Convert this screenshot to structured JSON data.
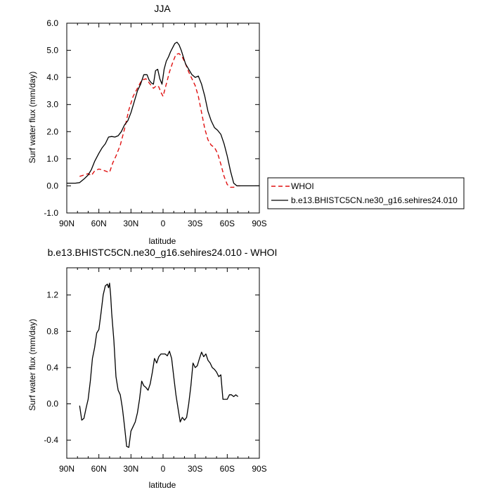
{
  "chart_data": [
    {
      "type": "line",
      "title": "JJA",
      "xlabel": "latitude",
      "ylabel": "Surf water flux (mm/day)",
      "xlim": [
        90,
        -90
      ],
      "ylim": [
        -1.0,
        6.0
      ],
      "x_ticks": [
        90,
        60,
        30,
        0,
        -30,
        -60,
        -90
      ],
      "x_tick_labels": [
        "90N",
        "60N",
        "30N",
        "0",
        "30S",
        "60S",
        "90S"
      ],
      "y_ticks": [
        -1.0,
        0.0,
        1.0,
        2.0,
        3.0,
        4.0,
        5.0,
        6.0
      ],
      "y_tick_labels": [
        "-1.0",
        "0.0",
        "1.0",
        "2.0",
        "3.0",
        "4.0",
        "5.0",
        "6.0"
      ],
      "legend": "right-outside",
      "series": [
        {
          "name": "WHOI",
          "color": "#e01010",
          "dash": "dashed",
          "x": [
            78,
            74,
            70,
            67,
            64,
            60,
            56,
            52,
            50,
            47,
            44,
            40,
            36,
            32,
            28,
            24,
            20,
            16,
            12,
            9,
            6,
            4,
            2,
            0,
            -2,
            -4,
            -6,
            -9,
            -12,
            -15,
            -18,
            -21,
            -24,
            -27,
            -30,
            -33,
            -36,
            -39,
            -42,
            -45,
            -48,
            -51,
            -54,
            -57,
            -60,
            -63,
            -66,
            -69,
            -72
          ],
          "y": [
            0.35,
            0.4,
            0.45,
            0.38,
            0.55,
            0.62,
            0.58,
            0.52,
            0.5,
            0.85,
            1.1,
            1.5,
            2.1,
            2.8,
            3.3,
            3.6,
            3.9,
            3.95,
            3.75,
            3.6,
            3.7,
            3.65,
            3.45,
            3.3,
            3.6,
            3.9,
            4.2,
            4.55,
            4.85,
            4.88,
            4.75,
            4.5,
            4.2,
            3.95,
            3.7,
            3.3,
            2.7,
            2.1,
            1.7,
            1.5,
            1.42,
            1.2,
            0.8,
            0.35,
            0.05,
            -0.05,
            -0.05,
            0.0,
            0.0
          ]
        },
        {
          "name": "b.e13.BHISTC5CN.ne30_g16.sehires24.010",
          "color": "#000000",
          "dash": "solid",
          "x": [
            90,
            86,
            82,
            78,
            74,
            70,
            67,
            64,
            60,
            57,
            54,
            51,
            48,
            45,
            42,
            39,
            36,
            33,
            30,
            27,
            24,
            21,
            18,
            15,
            13,
            11,
            9,
            7,
            5,
            3,
            1,
            -1,
            -3,
            -5,
            -7,
            -9,
            -11,
            -13,
            -15,
            -17,
            -19,
            -21,
            -24,
            -27,
            -30,
            -33,
            -36,
            -39,
            -42,
            -45,
            -48,
            -51,
            -54,
            -57,
            -60,
            -63,
            -66,
            -69,
            -72,
            -75,
            -78,
            -81,
            -84,
            -87,
            -90
          ],
          "y": [
            0.1,
            0.1,
            0.1,
            0.12,
            0.25,
            0.4,
            0.6,
            0.9,
            1.2,
            1.4,
            1.55,
            1.8,
            1.82,
            1.8,
            1.85,
            2.0,
            2.25,
            2.4,
            2.7,
            3.1,
            3.5,
            3.75,
            4.1,
            4.1,
            3.9,
            3.8,
            3.75,
            4.25,
            4.3,
            3.95,
            3.75,
            4.3,
            4.6,
            4.75,
            4.95,
            5.1,
            5.25,
            5.3,
            5.2,
            5.0,
            4.75,
            4.5,
            4.3,
            4.1,
            4.0,
            4.05,
            3.75,
            3.3,
            2.75,
            2.4,
            2.15,
            2.05,
            1.9,
            1.55,
            1.1,
            0.55,
            0.1,
            0.0,
            0.0,
            0.0,
            0.0,
            0.0,
            0.0,
            0.0,
            0.0
          ]
        }
      ]
    },
    {
      "type": "line",
      "title": "b.e13.BHISTC5CN.ne30_g16.sehires24.010 - WHOI",
      "xlabel": "latitude",
      "ylabel": "Surf water flux (mm/day)",
      "xlim": [
        90,
        -90
      ],
      "ylim": [
        -0.6,
        1.5
      ],
      "x_ticks": [
        90,
        60,
        30,
        0,
        -30,
        -60,
        -90
      ],
      "x_tick_labels": [
        "90N",
        "60N",
        "30N",
        "0",
        "30S",
        "60S",
        "90S"
      ],
      "y_ticks": [
        -0.4,
        0.0,
        0.4,
        0.8,
        1.2
      ],
      "y_tick_labels": [
        "-0.4",
        "0.0",
        "0.4",
        "0.8",
        "1.2"
      ],
      "series": [
        {
          "color": "#000000",
          "dash": "solid",
          "x": [
            78,
            76,
            74,
            72,
            70,
            68,
            66,
            64,
            62,
            60,
            58,
            56,
            54,
            52,
            51,
            50,
            49,
            48,
            46,
            44,
            42,
            40,
            38,
            36,
            34,
            32,
            30,
            28,
            26,
            24,
            22,
            20,
            18,
            16,
            14,
            12,
            10,
            8,
            6,
            4,
            2,
            0,
            -2,
            -4,
            -6,
            -8,
            -10,
            -12,
            -14,
            -16,
            -18,
            -20,
            -22,
            -24,
            -26,
            -28,
            -30,
            -32,
            -34,
            -36,
            -38,
            -40,
            -42,
            -44,
            -46,
            -48,
            -50,
            -52,
            -54,
            -56,
            -58,
            -60,
            -62,
            -64,
            -66,
            -68,
            -70
          ],
          "y": [
            -0.02,
            -0.18,
            -0.16,
            -0.05,
            0.05,
            0.25,
            0.5,
            0.62,
            0.78,
            0.82,
            1.0,
            1.2,
            1.3,
            1.32,
            1.28,
            1.33,
            1.2,
            1.0,
            0.7,
            0.3,
            0.15,
            0.1,
            -0.05,
            -0.25,
            -0.47,
            -0.48,
            -0.3,
            -0.25,
            -0.2,
            -0.1,
            0.05,
            0.25,
            0.2,
            0.18,
            0.15,
            0.22,
            0.35,
            0.5,
            0.45,
            0.52,
            0.55,
            0.55,
            0.55,
            0.53,
            0.58,
            0.5,
            0.3,
            0.1,
            -0.05,
            -0.2,
            -0.15,
            -0.18,
            -0.15,
            0.0,
            0.2,
            0.45,
            0.4,
            0.42,
            0.5,
            0.57,
            0.52,
            0.55,
            0.48,
            0.45,
            0.4,
            0.38,
            0.35,
            0.3,
            0.32,
            0.05,
            0.05,
            0.05,
            0.1,
            0.1,
            0.08,
            0.1,
            0.08
          ]
        }
      ]
    }
  ]
}
